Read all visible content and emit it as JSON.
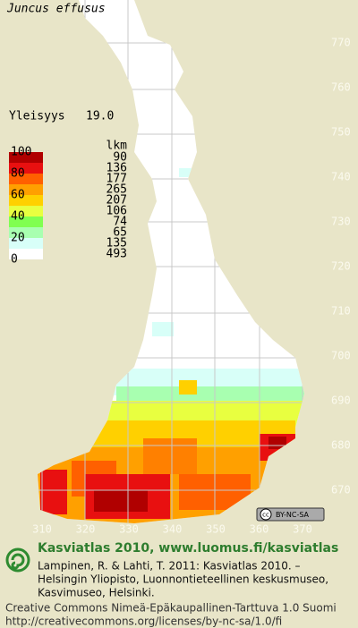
{
  "header": {
    "title": "Juncus effusus",
    "index_label": "Yleisyys",
    "index_value": "19.0"
  },
  "legend": {
    "ticks": [
      "100",
      "80",
      "60",
      "40",
      "20",
      "0"
    ],
    "unit_label": "lkm",
    "counts": [
      "90",
      "136",
      "177",
      "265",
      "207",
      "106",
      "74",
      "65",
      "135",
      "493"
    ]
  },
  "grid": {
    "north_labels": [
      "770",
      "760",
      "750",
      "740",
      "730",
      "720",
      "710",
      "700",
      "690",
      "680",
      "670"
    ],
    "east_labels": [
      "310",
      "320",
      "330",
      "340",
      "350",
      "360",
      "370"
    ]
  },
  "badge": {
    "text": "BY-NC-SA"
  },
  "footer": {
    "heading": "Kasviatlas 2010, www.luomus.fi/kasviatlas",
    "citation": [
      "Lampinen, R. & Lahti, T. 2011: Kasviatlas 2010. –",
      "Helsingin Yliopisto, Luonnontieteellinen keskusmuseo,",
      "Kasvimuseo, Helsinki."
    ],
    "license": [
      "Creative Commons Nimeä-Epäkaupallinen-Tarttuva 1.0 Suomi",
      "http://creativecommons.org/licenses/by-nc-sa/1.0/fi"
    ]
  }
}
